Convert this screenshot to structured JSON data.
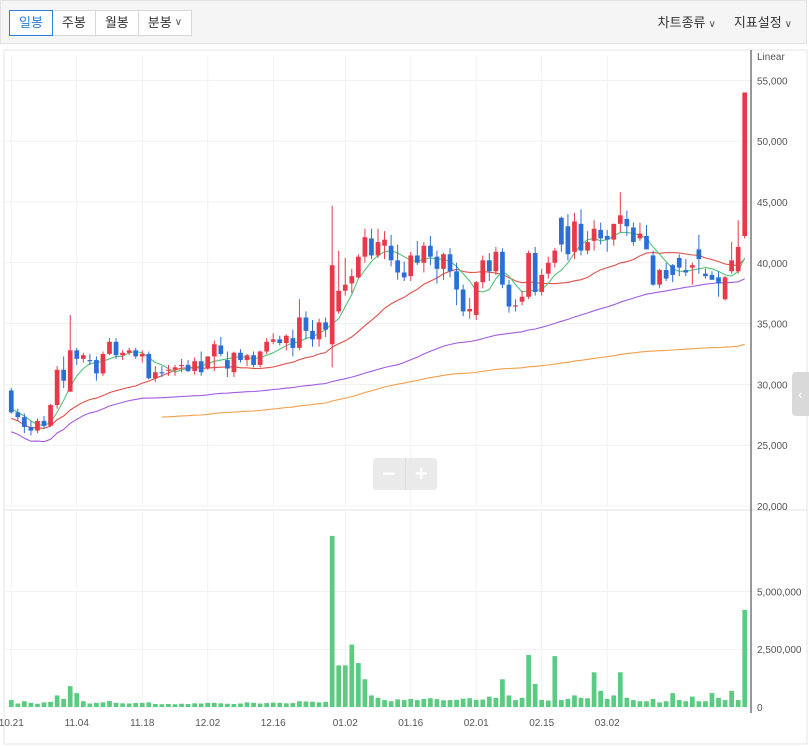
{
  "toolbar": {
    "tabs": [
      {
        "label": "일봉",
        "active": true
      },
      {
        "label": "주봉",
        "active": false
      },
      {
        "label": "월봉",
        "active": false
      },
      {
        "label": "분봉",
        "active": false
      }
    ],
    "chart_type_label": "차트종류",
    "indicator_label": "지표설정"
  },
  "controls": {
    "zoom_out": "−",
    "zoom_in": "+",
    "side_toggle": "‹"
  },
  "chart_data": [
    {
      "type": "candlestick",
      "scale_label": "Linear",
      "ylim": [
        20000,
        57000
      ],
      "y_ticks": [
        20000,
        25000,
        30000,
        35000,
        40000,
        45000,
        50000,
        55000
      ],
      "y_tick_labels": [
        "20,000",
        "25,000",
        "30,000",
        "35,000",
        "40,000",
        "45,000",
        "50,000",
        "55,000"
      ],
      "x_tick_labels": [
        "10.21",
        "11.04",
        "11.18",
        "12.02",
        "12.16",
        "01.02",
        "01.16",
        "02.01",
        "02.15",
        "03.02"
      ],
      "colors": {
        "up": "#e8394a",
        "down": "#2b6fd6",
        "ma5": "#55c47a",
        "ma20": "#e0504a",
        "ma60": "#a25be0",
        "ma120": "#f0a04b"
      },
      "ohlc": [
        [
          29500,
          29700,
          27600,
          27700
        ],
        [
          27700,
          28000,
          27000,
          27300
        ],
        [
          27300,
          27600,
          26000,
          26500
        ],
        [
          26500,
          27000,
          25800,
          26200
        ],
        [
          26200,
          27200,
          26000,
          27000
        ],
        [
          27000,
          27400,
          26400,
          26600
        ],
        [
          26600,
          28400,
          26500,
          28300
        ],
        [
          28300,
          31500,
          28000,
          31200
        ],
        [
          31200,
          32300,
          29700,
          30300
        ],
        [
          29400,
          35700,
          29400,
          32800
        ],
        [
          32800,
          33000,
          31600,
          32100
        ],
        [
          32100,
          32600,
          31800,
          32400
        ],
        [
          32000,
          32500,
          31600,
          31900
        ],
        [
          32000,
          32300,
          30300,
          30900
        ],
        [
          30900,
          32700,
          30700,
          32500
        ],
        [
          32500,
          33800,
          32400,
          33500
        ],
        [
          33500,
          33800,
          32100,
          32400
        ],
        [
          32400,
          32800,
          32000,
          32600
        ],
        [
          32600,
          33000,
          32400,
          32800
        ],
        [
          32800,
          33000,
          32100,
          32300
        ],
        [
          32300,
          32800,
          31800,
          32500
        ],
        [
          32500,
          32700,
          30400,
          30500
        ],
        [
          30500,
          31500,
          30200,
          31000
        ],
        [
          31000,
          31500,
          30600,
          30900
        ],
        [
          31200,
          31600,
          30700,
          31200
        ],
        [
          31200,
          31600,
          30700,
          31400
        ],
        [
          31500,
          32100,
          31000,
          31600
        ],
        [
          31600,
          32000,
          31000,
          31100
        ],
        [
          31100,
          32200,
          30800,
          31900
        ],
        [
          31900,
          32700,
          30700,
          31000
        ],
        [
          31300,
          32300,
          31200,
          32300
        ],
        [
          32300,
          33600,
          31100,
          33300
        ],
        [
          33200,
          33900,
          32300,
          32500
        ],
        [
          32000,
          32700,
          30600,
          31300
        ],
        [
          31000,
          32700,
          30600,
          32600
        ],
        [
          32600,
          32900,
          31800,
          32000
        ],
        [
          32000,
          32500,
          31500,
          32400
        ],
        [
          32400,
          32700,
          31400,
          31600
        ],
        [
          31600,
          32800,
          31400,
          32700
        ],
        [
          32700,
          33800,
          32500,
          33500
        ],
        [
          33500,
          34200,
          33300,
          33700
        ],
        [
          33700,
          34000,
          33200,
          33400
        ],
        [
          33400,
          34100,
          32800,
          34000
        ],
        [
          33800,
          34500,
          32300,
          33000
        ],
        [
          33000,
          37000,
          32800,
          35500
        ],
        [
          35500,
          36000,
          33700,
          34400
        ],
        [
          34400,
          35300,
          33100,
          33700
        ],
        [
          33700,
          35400,
          33100,
          35100
        ],
        [
          35100,
          35500,
          33900,
          34500
        ],
        [
          33300,
          44700,
          31400,
          39800
        ],
        [
          36000,
          41000,
          35800,
          37700
        ],
        [
          37700,
          40400,
          37300,
          38200
        ],
        [
          38300,
          39500,
          37500,
          38900
        ],
        [
          38800,
          40700,
          38700,
          40500
        ],
        [
          40500,
          42800,
          40000,
          42100
        ],
        [
          42000,
          42800,
          40300,
          40600
        ],
        [
          40600,
          42800,
          40400,
          41700
        ],
        [
          41400,
          42600,
          40300,
          41900
        ],
        [
          41400,
          42300,
          39700,
          40200
        ],
        [
          40200,
          41500,
          38600,
          39200
        ],
        [
          39200,
          40100,
          38500,
          38800
        ],
        [
          38900,
          40900,
          38500,
          40600
        ],
        [
          40600,
          41800,
          39800,
          40000
        ],
        [
          40000,
          41700,
          39200,
          41400
        ],
        [
          41400,
          42200,
          39800,
          40500
        ],
        [
          40500,
          41000,
          38300,
          39500
        ],
        [
          39500,
          40800,
          38600,
          40700
        ],
        [
          40700,
          41200,
          38800,
          39300
        ],
        [
          39300,
          40000,
          36500,
          37800
        ],
        [
          37800,
          38200,
          35600,
          36000
        ],
        [
          36000,
          37100,
          35400,
          36200
        ],
        [
          35700,
          38500,
          35300,
          38400
        ],
        [
          38400,
          40600,
          37900,
          40200
        ],
        [
          40200,
          40800,
          38500,
          39300
        ],
        [
          39300,
          41300,
          39000,
          40900
        ],
        [
          40900,
          41200,
          37900,
          38200
        ],
        [
          38200,
          38600,
          35900,
          36400
        ],
        [
          36400,
          37000,
          36000,
          36500
        ],
        [
          36800,
          37700,
          36500,
          37200
        ],
        [
          37200,
          41000,
          37000,
          40800
        ],
        [
          40800,
          41300,
          37300,
          37600
        ],
        [
          37600,
          39500,
          37300,
          39000
        ],
        [
          39100,
          40500,
          38700,
          40000
        ],
        [
          40000,
          41200,
          39600,
          41000
        ],
        [
          43700,
          43800,
          40900,
          41500
        ],
        [
          43000,
          44000,
          40200,
          40700
        ],
        [
          40900,
          44100,
          40300,
          43400
        ],
        [
          43200,
          44400,
          40600,
          41000
        ],
        [
          41000,
          42600,
          40700,
          41700
        ],
        [
          41800,
          43500,
          41000,
          42800
        ],
        [
          42700,
          43300,
          41500,
          42000
        ],
        [
          42200,
          42700,
          40900,
          41900
        ],
        [
          41900,
          43200,
          41400,
          43200
        ],
        [
          43200,
          45800,
          42500,
          43900
        ],
        [
          43600,
          44300,
          42200,
          43000
        ],
        [
          42900,
          43300,
          41400,
          41700
        ],
        [
          42000,
          43300,
          41800,
          42400
        ],
        [
          42200,
          43100,
          41100,
          41100
        ],
        [
          40600,
          41000,
          38100,
          38200
        ],
        [
          38200,
          39500,
          37900,
          39400
        ],
        [
          39400,
          40000,
          38500,
          38700
        ],
        [
          39800,
          39900,
          38400,
          39000
        ],
        [
          40400,
          40700,
          38900,
          39600
        ],
        [
          39400,
          40300,
          38900,
          39200
        ],
        [
          39600,
          40000,
          38200,
          39800
        ],
        [
          41100,
          42300,
          39100,
          40300
        ],
        [
          39100,
          39500,
          38700,
          38900
        ],
        [
          39000,
          39300,
          38600,
          38600
        ],
        [
          38800,
          39300,
          37200,
          38300
        ],
        [
          37000,
          38900,
          36900,
          38800
        ],
        [
          39300,
          41700,
          39100,
          40200
        ],
        [
          39300,
          43500,
          39100,
          41300
        ],
        [
          42200,
          54000,
          42000,
          54000
        ]
      ],
      "ma5": [
        28000,
        27700,
        27400,
        27000,
        26700,
        26600,
        26900,
        27700,
        28700,
        29800,
        30700,
        31300,
        31700,
        31800,
        31900,
        32100,
        32300,
        32300,
        32600,
        32700,
        32600,
        32200,
        31800,
        31600,
        31300,
        31000,
        31200,
        31300,
        31400,
        31500,
        31700,
        31900,
        32000,
        32100,
        32200,
        32300,
        32200,
        32100,
        32200,
        32400,
        32600,
        32900,
        33200,
        33400,
        33500,
        33800,
        33900,
        34200,
        34500,
        35000,
        35400,
        36400,
        37400,
        38700,
        39400,
        40100,
        40600,
        40900,
        41000,
        40800,
        40500,
        40200,
        40100,
        40300,
        40400,
        40300,
        40300,
        40100,
        39700,
        39100,
        38500,
        37700,
        37600,
        37800,
        38700,
        39300,
        38900,
        38200,
        37600,
        37700,
        37700,
        37800,
        38300,
        39000,
        39400,
        40000,
        40800,
        41500,
        41900,
        42000,
        41800,
        41900,
        42200,
        42500,
        42500,
        42400,
        42300,
        42000,
        41300,
        40700,
        40100,
        39500,
        39300,
        39300,
        39400,
        39500,
        39600,
        39500,
        39300,
        39000,
        38900,
        39300,
        40400
      ]
    },
    {
      "type": "bar",
      "name": "volume",
      "ylim": [
        0,
        8000000
      ],
      "y_ticks": [
        0,
        2500000,
        5000000
      ],
      "y_tick_labels": [
        "0",
        "2,500,000",
        "5,000,000"
      ],
      "values": [
        300000,
        150000,
        250000,
        180000,
        140000,
        200000,
        220000,
        500000,
        350000,
        900000,
        600000,
        250000,
        150000,
        180000,
        200000,
        260000,
        180000,
        160000,
        150000,
        170000,
        180000,
        200000,
        130000,
        120000,
        130000,
        120000,
        140000,
        130000,
        160000,
        150000,
        180000,
        180000,
        160000,
        140000,
        130000,
        150000,
        200000,
        180000,
        150000,
        170000,
        190000,
        180000,
        160000,
        170000,
        250000,
        240000,
        230000,
        200000,
        220000,
        7400000,
        1800000,
        1800000,
        2700000,
        1900000,
        1200000,
        500000,
        400000,
        300000,
        250000,
        330000,
        300000,
        350000,
        300000,
        350000,
        380000,
        340000,
        290000,
        300000,
        310000,
        360000,
        380000,
        310000,
        320000,
        450000,
        400000,
        1200000,
        500000,
        300000,
        400000,
        2250000,
        1000000,
        300000,
        280000,
        2200000,
        300000,
        350000,
        500000,
        400000,
        380000,
        1500000,
        700000,
        350000,
        500000,
        1500000,
        400000,
        300000,
        250000,
        250000,
        350000,
        200000,
        250000,
        600000,
        300000,
        250000,
        450000,
        250000,
        250000,
        600000,
        400000,
        300000,
        700000,
        300000,
        4200000
      ]
    }
  ]
}
